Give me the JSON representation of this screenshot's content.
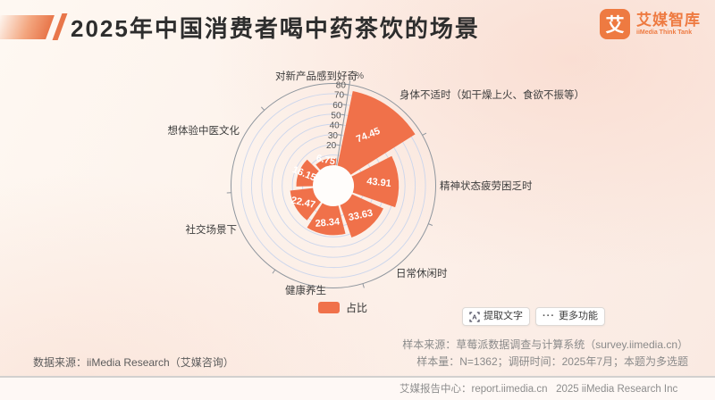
{
  "header": {
    "title": "2025年中国消费者喝中药茶饮的场景",
    "logo": {
      "glyph": "艾",
      "name_cn": "艾媒智库",
      "name_en": "iiMedia Think Tank"
    }
  },
  "chart_data": {
    "type": "bar",
    "subtype": "nightingale-rose-polar",
    "categories": [
      "身体不适时（如干燥上火、食欲不振等）",
      "精神状态疲劳困乏时",
      "日常休闲时",
      "健康养生",
      "社交场景下",
      "想体验中医文化",
      "对新产品感到好奇"
    ],
    "values": [
      74.45,
      43.91,
      33.63,
      28.34,
      22.47,
      16.15,
      6.75
    ],
    "series_name": "占比",
    "unit": "%",
    "rlim": [
      0,
      80
    ],
    "radial_ticks_shown": [
      0,
      20,
      30,
      40,
      50,
      60,
      70,
      80
    ],
    "legend_position": "bottom",
    "grid": true,
    "colors": {
      "bar": "#f0714a",
      "grid": "#ccd6ec",
      "axis": "#8f969e",
      "tick_text": "#555555",
      "category_text": "#3d3d3d",
      "value_text": "#ffffff"
    }
  },
  "toolbar": {
    "extract_text_label": "提取文字",
    "more_features_label": "更多功能",
    "more_icon_glyph": "···"
  },
  "footnotes": {
    "data_source": "数据来源：iiMedia Research（艾媒咨询）",
    "sample_source": "样本来源：草莓派数据调查与计算系统（survey.iimedia.cn）",
    "sample_info": "样本量：N=1362；调研时间：2025年7月；本题为多选题"
  },
  "footer": {
    "text": "艾媒报告中心：report.iimedia.cn   2025 iiMedia Research Inc"
  }
}
